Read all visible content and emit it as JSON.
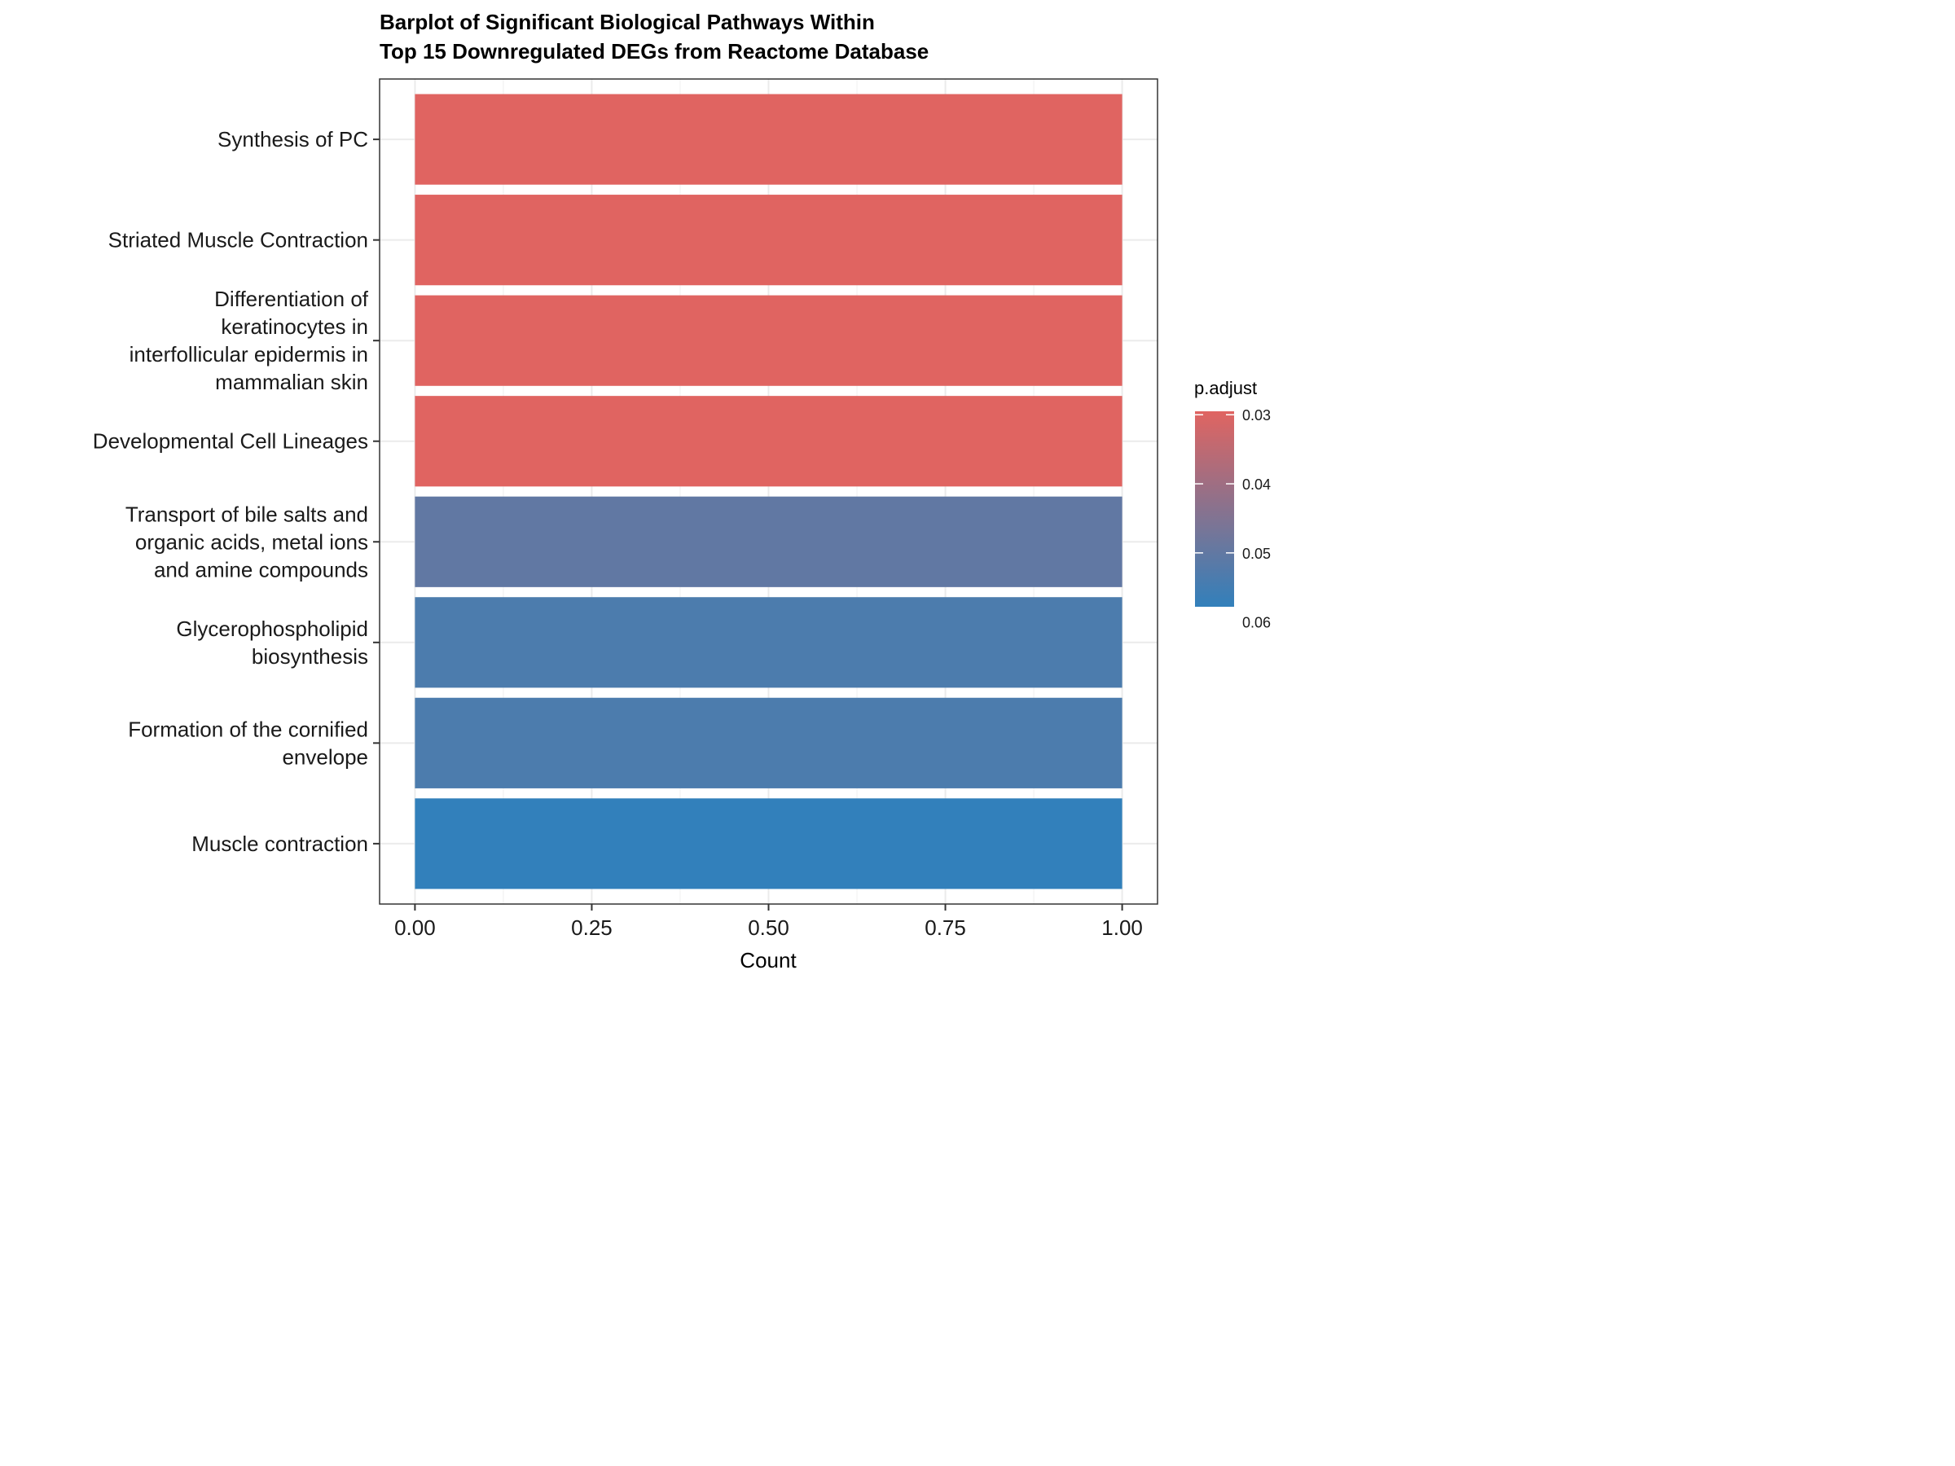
{
  "chart_data": {
    "type": "bar",
    "orientation": "horizontal",
    "title_lines": [
      "Barplot of Significant Biological Pathways Within",
      "Top 15 Downregulated DEGs from Reactome Database"
    ],
    "xlabel": "Count",
    "ylabel": "",
    "xlim": [
      -0.05,
      1.05
    ],
    "x_ticks": [
      "0.00",
      "0.25",
      "0.50",
      "0.75",
      "1.00"
    ],
    "x_tick_values": [
      0,
      0.25,
      0.5,
      0.75,
      1.0
    ],
    "grid": true,
    "categories": [
      [
        "Synthesis of PC"
      ],
      [
        "Striated Muscle Contraction"
      ],
      [
        "Differentiation of",
        "keratinocytes in",
        "interfollicular epidermis in",
        "mammalian skin"
      ],
      [
        "Developmental Cell Lineages"
      ],
      [
        "Transport of bile salts and",
        "organic acids, metal ions",
        "and amine compounds"
      ],
      [
        "Glycerophospholipid",
        "biosynthesis"
      ],
      [
        "Formation of the cornified",
        "envelope"
      ],
      [
        "Muscle contraction"
      ]
    ],
    "values": [
      1,
      1,
      1,
      1,
      1,
      1,
      1,
      1
    ],
    "p_adjust": [
      0.0295,
      0.0295,
      0.0295,
      0.0295,
      0.0502,
      0.0535,
      0.0535,
      0.0578
    ],
    "legend": {
      "title": "p.adjust",
      "position": "right",
      "ticks": [
        "0.03",
        "0.04",
        "0.05",
        "0.06"
      ],
      "tick_values": [
        0.03,
        0.04,
        0.05,
        0.06
      ],
      "range": [
        0.0295,
        0.0578
      ],
      "low_color": "#e06461",
      "high_color": "#3280bb"
    }
  }
}
